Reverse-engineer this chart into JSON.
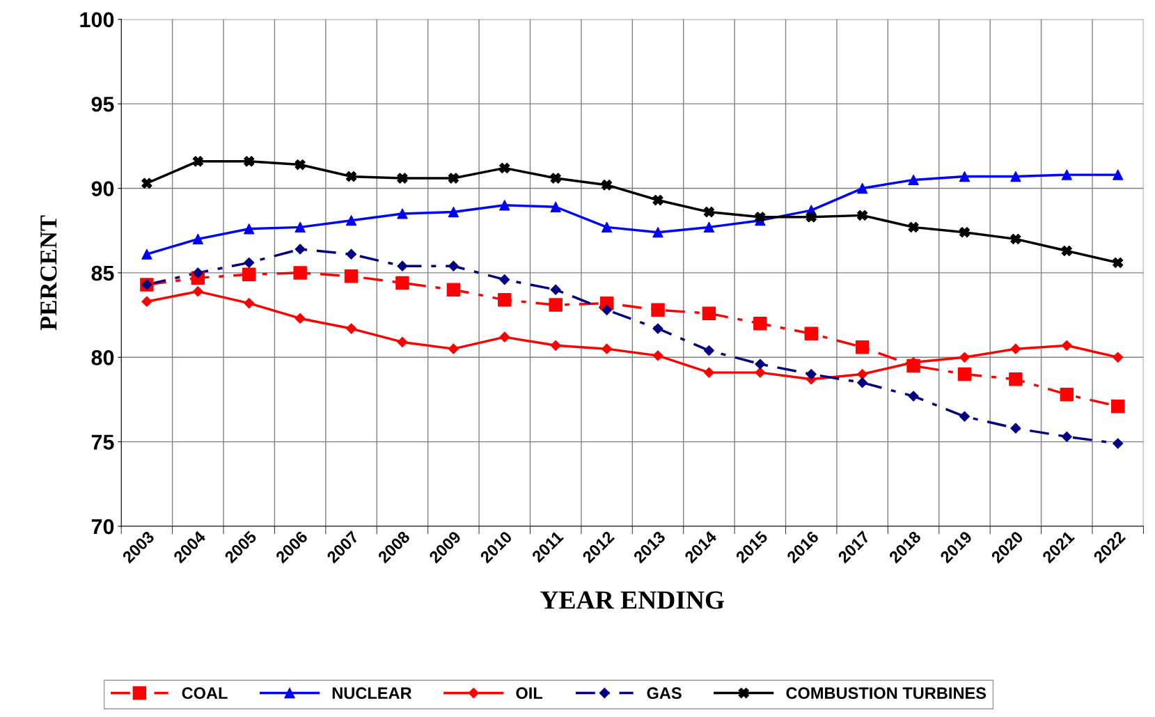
{
  "chart_data": {
    "type": "line",
    "xlabel": "YEAR ENDING",
    "ylabel": "PERCENT",
    "categories": [
      "2003",
      "2004",
      "2005",
      "2006",
      "2007",
      "2008",
      "2009",
      "2010",
      "2011",
      "2012",
      "2013",
      "2014",
      "2015",
      "2016",
      "2017",
      "2018",
      "2019",
      "2020",
      "2021",
      "2022"
    ],
    "ylim": [
      70,
      100
    ],
    "yticks": [
      70,
      75,
      80,
      85,
      90,
      95,
      100
    ],
    "grid": true,
    "legend": "bottom",
    "series": [
      {
        "name": "COAL",
        "color": "#ff0000",
        "marker": "square",
        "line_style": "dashed",
        "values": [
          84.3,
          84.7,
          84.9,
          85.0,
          84.8,
          84.4,
          84.0,
          83.4,
          83.1,
          83.2,
          82.8,
          82.6,
          82.0,
          81.4,
          80.6,
          79.5,
          79.0,
          78.7,
          77.8,
          77.1
        ]
      },
      {
        "name": "NUCLEAR",
        "color": "#0000ff",
        "marker": "triangle",
        "line_style": "solid",
        "values": [
          86.1,
          87.0,
          87.6,
          87.7,
          88.1,
          88.5,
          88.6,
          89.0,
          88.9,
          87.7,
          87.4,
          87.7,
          88.1,
          88.7,
          90.0,
          90.5,
          90.7,
          90.7,
          90.8,
          90.8
        ]
      },
      {
        "name": "OIL",
        "color": "#ff0000",
        "marker": "diamond",
        "line_style": "solid",
        "values": [
          83.3,
          83.9,
          83.2,
          82.3,
          81.7,
          80.9,
          80.5,
          81.2,
          80.7,
          80.5,
          80.1,
          79.1,
          79.1,
          78.7,
          79.0,
          79.7,
          80.0,
          80.5,
          80.7,
          80.0
        ]
      },
      {
        "name": "GAS",
        "color": "#000080",
        "marker": "diamond",
        "line_style": "dashed",
        "values": [
          84.3,
          85.0,
          85.6,
          86.4,
          86.1,
          85.4,
          85.4,
          84.6,
          84.0,
          82.8,
          81.7,
          80.4,
          79.6,
          79.0,
          78.5,
          77.7,
          76.5,
          75.8,
          75.3,
          74.9
        ]
      },
      {
        "name": "COMBUSTION TURBINES",
        "color": "#000000",
        "marker": "cross",
        "line_style": "solid",
        "values": [
          90.3,
          91.6,
          91.6,
          91.4,
          90.7,
          90.6,
          90.6,
          91.2,
          90.6,
          90.2,
          89.3,
          88.6,
          88.3,
          88.3,
          88.4,
          87.7,
          87.4,
          87.0,
          86.3,
          85.6
        ]
      }
    ]
  }
}
